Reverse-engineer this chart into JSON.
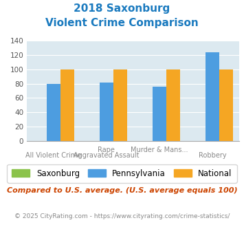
{
  "title_line1": "2018 Saxonburg",
  "title_line2": "Violent Crime Comparison",
  "title_color": "#1a7abf",
  "cat_top": [
    "",
    "Rape",
    "Murder & Mans...",
    ""
  ],
  "cat_bottom": [
    "All Violent Crime",
    "Aggravated Assault",
    "",
    "Robbery"
  ],
  "saxonburg_values": [
    0,
    0,
    0,
    0
  ],
  "pennsylvania_values": [
    80,
    82,
    76,
    124
  ],
  "national_values": [
    100,
    100,
    100,
    100
  ],
  "saxonburg_color": "#8bc34a",
  "pennsylvania_color": "#4d9de0",
  "national_color": "#f5a623",
  "ylim": [
    0,
    140
  ],
  "yticks": [
    0,
    20,
    40,
    60,
    80,
    100,
    120,
    140
  ],
  "plot_bg": "#dce9f0",
  "legend_labels": [
    "Saxonburg",
    "Pennsylvania",
    "National"
  ],
  "footnote1": "Compared to U.S. average. (U.S. average equals 100)",
  "footnote2": "© 2025 CityRating.com - https://www.cityrating.com/crime-statistics/",
  "footnote1_color": "#cc4400",
  "footnote2_color": "#888888"
}
